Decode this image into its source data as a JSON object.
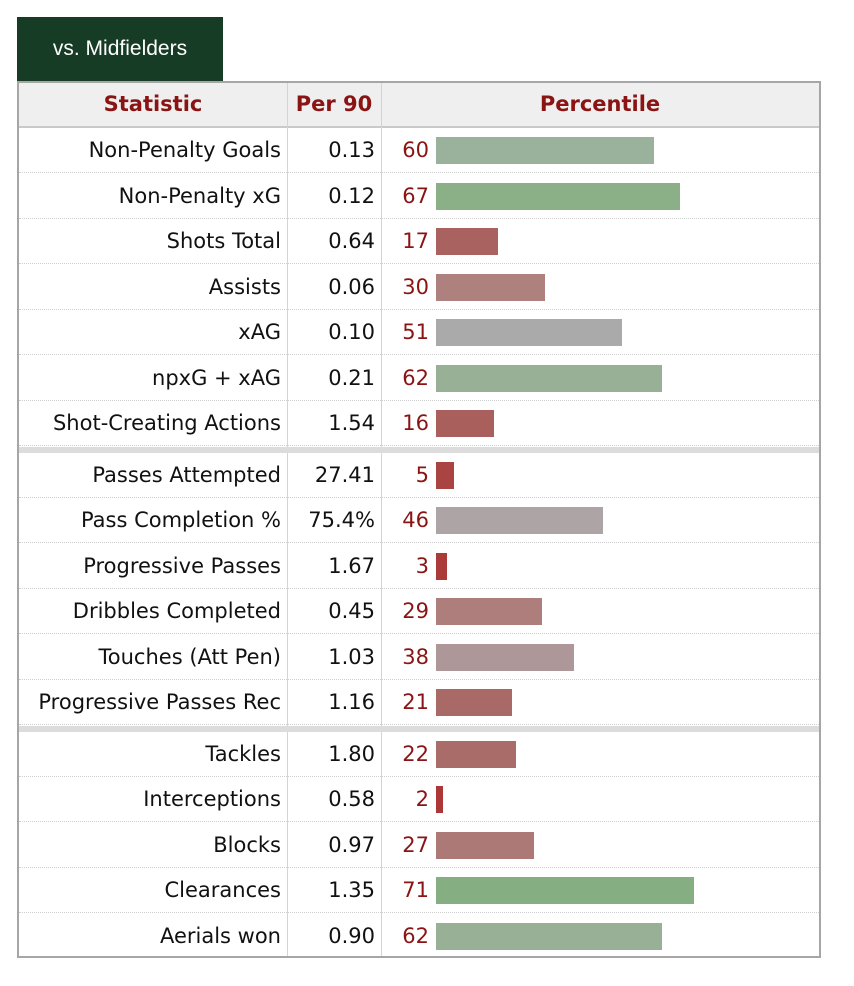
{
  "tab": {
    "label": "vs. Midfielders"
  },
  "table": {
    "headers": {
      "statistic": "Statistic",
      "per90": "Per 90",
      "percentile": "Percentile"
    },
    "groups": [
      [
        {
          "stat": "Non-Penalty Goals",
          "per90": "0.13",
          "percentile": 60,
          "color": "#9ab19b"
        },
        {
          "stat": "Non-Penalty xG",
          "per90": "0.12",
          "percentile": 67,
          "color": "#8bb087"
        },
        {
          "stat": "Shots Total",
          "per90": "0.64",
          "percentile": 17,
          "color": "#a9625f"
        },
        {
          "stat": "Assists",
          "per90": "0.06",
          "percentile": 30,
          "color": "#ae807e"
        },
        {
          "stat": "xAG",
          "per90": "0.10",
          "percentile": 51,
          "color": "#aaaaaa"
        },
        {
          "stat": "npxG + xAG",
          "per90": "0.21",
          "percentile": 62,
          "color": "#98b196"
        },
        {
          "stat": "Shot-Creating Actions",
          "per90": "1.54",
          "percentile": 16,
          "color": "#a9605d"
        }
      ],
      [
        {
          "stat": "Passes Attempted",
          "per90": "27.41",
          "percentile": 5,
          "color": "#aa4442"
        },
        {
          "stat": "Pass Completion %",
          "per90": "75.4%",
          "percentile": 46,
          "color": "#ada4a5"
        },
        {
          "stat": "Progressive Passes",
          "per90": "1.67",
          "percentile": 3,
          "color": "#ab3b39"
        },
        {
          "stat": "Dribbles Completed",
          "per90": "0.45",
          "percentile": 29,
          "color": "#ad7e7c"
        },
        {
          "stat": "Touches (Att Pen)",
          "per90": "1.03",
          "percentile": 38,
          "color": "#ae9798"
        },
        {
          "stat": "Progressive Passes Rec",
          "per90": "1.16",
          "percentile": 21,
          "color": "#a96a67"
        }
      ],
      [
        {
          "stat": "Tackles",
          "per90": "1.80",
          "percentile": 22,
          "color": "#aa6c69"
        },
        {
          "stat": "Interceptions",
          "per90": "0.58",
          "percentile": 2,
          "color": "#ab3836"
        },
        {
          "stat": "Blocks",
          "per90": "0.97",
          "percentile": 27,
          "color": "#ad7977"
        },
        {
          "stat": "Clearances",
          "per90": "1.35",
          "percentile": 71,
          "color": "#85ae82"
        },
        {
          "stat": "Aerials won",
          "per90": "0.90",
          "percentile": 62,
          "color": "#98b196"
        }
      ]
    ]
  }
}
